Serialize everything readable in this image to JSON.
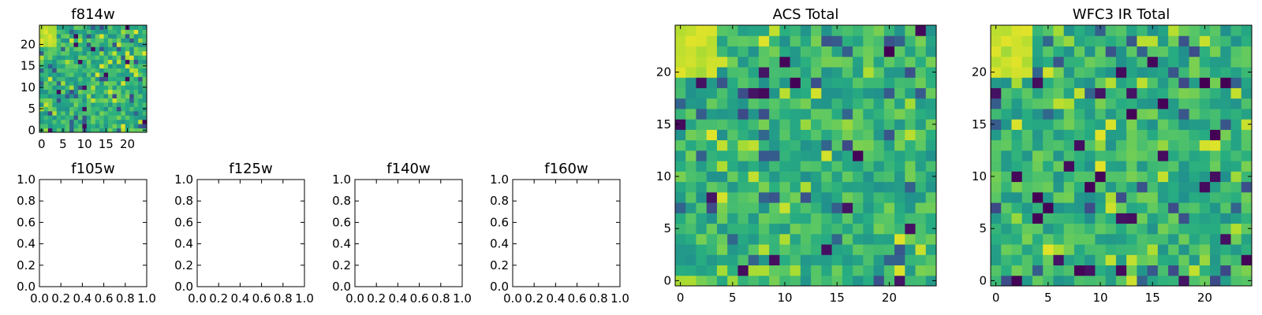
{
  "chart_data": [
    {
      "type": "heatmap",
      "title": "f814w",
      "xticks": [
        "0",
        "5",
        "10",
        "15",
        "20"
      ],
      "yticks": [
        "0",
        "5",
        "10",
        "15",
        "20"
      ],
      "xlim": [
        -0.5,
        24.5
      ],
      "ylim": [
        -0.5,
        24.5
      ],
      "grid_size": 25,
      "colormap": "viridis",
      "seed": 814,
      "bright_corner": "top-left"
    },
    {
      "type": "empty",
      "title": "f105w",
      "xticks": [
        "0.0",
        "0.2",
        "0.4",
        "0.6",
        "0.8",
        "1.0"
      ],
      "yticks": [
        "0.0",
        "0.2",
        "0.4",
        "0.6",
        "0.8",
        "1.0"
      ],
      "xlim": [
        0,
        1
      ],
      "ylim": [
        0,
        1
      ]
    },
    {
      "type": "empty",
      "title": "f125w",
      "xticks": [
        "0.0",
        "0.2",
        "0.4",
        "0.6",
        "0.8",
        "1.0"
      ],
      "yticks": [
        "0.0",
        "0.2",
        "0.4",
        "0.6",
        "0.8",
        "1.0"
      ],
      "xlim": [
        0,
        1
      ],
      "ylim": [
        0,
        1
      ]
    },
    {
      "type": "empty",
      "title": "f140w",
      "xticks": [
        "0.0",
        "0.2",
        "0.4",
        "0.6",
        "0.8",
        "1.0"
      ],
      "yticks": [
        "0.0",
        "0.2",
        "0.4",
        "0.6",
        "0.8",
        "1.0"
      ],
      "xlim": [
        0,
        1
      ],
      "ylim": [
        0,
        1
      ]
    },
    {
      "type": "empty",
      "title": "f160w",
      "xticks": [
        "0.0",
        "0.2",
        "0.4",
        "0.6",
        "0.8",
        "1.0"
      ],
      "yticks": [
        "0.0",
        "0.2",
        "0.4",
        "0.6",
        "0.8",
        "1.0"
      ],
      "xlim": [
        0,
        1
      ],
      "ylim": [
        0,
        1
      ]
    },
    {
      "type": "heatmap",
      "title": "ACS Total",
      "xticks": [
        "0",
        "5",
        "10",
        "15",
        "20"
      ],
      "yticks": [
        "0",
        "5",
        "10",
        "15",
        "20"
      ],
      "xlim": [
        -0.5,
        24.5
      ],
      "ylim": [
        -0.5,
        24.5
      ],
      "grid_size": 25,
      "colormap": "viridis",
      "seed": 1001,
      "bright_corner": "top-left"
    },
    {
      "type": "heatmap",
      "title": "WFC3 IR Total",
      "xticks": [
        "0",
        "5",
        "10",
        "15",
        "20"
      ],
      "yticks": [
        "0",
        "5",
        "10",
        "15",
        "20"
      ],
      "xlim": [
        -0.5,
        24.5
      ],
      "ylim": [
        -0.5,
        24.5
      ],
      "grid_size": 25,
      "colormap": "viridis",
      "seed": 3001,
      "bright_corner": "top-left"
    }
  ],
  "colors": {
    "axis": "#000000",
    "background": "#ffffff"
  }
}
